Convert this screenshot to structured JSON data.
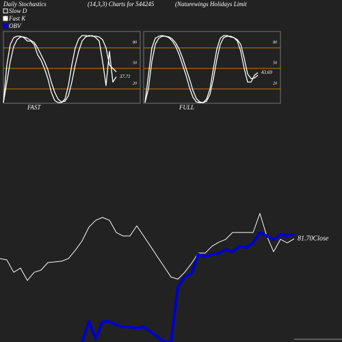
{
  "header": {
    "title": "Daily Stochastics",
    "params": "(14,3,3) Charts for 544245",
    "company": "(Naturewings Holidays Limit"
  },
  "chart_data": [
    {
      "type": "line",
      "title": "FAST",
      "ylim": [
        0,
        102
      ],
      "yticks": [
        20,
        50,
        80
      ],
      "grid": true,
      "grid_color": "#c87a00",
      "series": [
        {
          "name": "Slow D",
          "color": "#ffffff",
          "values": [
            0,
            30,
            60,
            82,
            92,
            96,
            96,
            94,
            91,
            88,
            80,
            70,
            60,
            48,
            30,
            15,
            5,
            1,
            2,
            10,
            30,
            55,
            75,
            90,
            96,
            98,
            97,
            97,
            96,
            92,
            80,
            55,
            50,
            45
          ]
        },
        {
          "name": "Fast K",
          "color": "#ffffff",
          "values": [
            0,
            55,
            85,
            95,
            97,
            97,
            95,
            90,
            90,
            85,
            70,
            62,
            50,
            35,
            15,
            3,
            0,
            0,
            5,
            25,
            55,
            80,
            93,
            98,
            98,
            97,
            98,
            95,
            90,
            60,
            25,
            75,
            30,
            37.71
          ],
          "value_labels": [
            null,
            null,
            null,
            null,
            null,
            null,
            null,
            null,
            null,
            null,
            null,
            null,
            null,
            null,
            null,
            null,
            null,
            null,
            null,
            null,
            null,
            null,
            null,
            null,
            null,
            null,
            null,
            null,
            null,
            null,
            null,
            null,
            null,
            "37.71"
          ]
        }
      ]
    },
    {
      "type": "line",
      "title": "FULL",
      "ylim": [
        0,
        102
      ],
      "yticks": [
        20,
        50,
        80
      ],
      "grid": true,
      "grid_color": "#c87a00",
      "series": [
        {
          "name": "Slow D",
          "color": "#ffffff",
          "values": [
            0,
            20,
            60,
            85,
            94,
            97,
            97,
            96,
            93,
            87,
            78,
            65,
            50,
            35,
            18,
            6,
            1,
            0,
            2,
            12,
            35,
            63,
            85,
            95,
            97,
            97,
            95,
            92,
            85,
            65,
            42,
            35,
            36,
            40
          ]
        },
        {
          "name": "Fast K",
          "color": "#ffffff",
          "values": [
            0,
            40,
            80,
            94,
            97,
            98,
            97,
            95,
            90,
            82,
            70,
            55,
            40,
            22,
            8,
            1,
            0,
            0,
            5,
            20,
            50,
            78,
            94,
            98,
            98,
            96,
            95,
            90,
            75,
            50,
            30,
            30,
            40,
            43.69
          ],
          "value_labels": [
            null,
            null,
            null,
            null,
            null,
            null,
            null,
            null,
            null,
            null,
            null,
            null,
            null,
            null,
            null,
            null,
            null,
            null,
            null,
            null,
            null,
            null,
            null,
            null,
            null,
            null,
            null,
            null,
            null,
            null,
            null,
            null,
            null,
            "43.69"
          ]
        }
      ]
    },
    {
      "type": "line",
      "ylim": [
        20,
        110
      ],
      "y2lim": [
        0,
        100
      ],
      "series": [
        {
          "color": "#ffffff",
          "values": [
            69.9,
            69.1,
            61.7,
            64.2,
            56.8,
            61.7,
            63.0,
            67.5,
            67.9,
            68.3,
            69.9,
            74.8,
            80.5,
            88.7,
            92.8,
            94.5,
            92.8,
            85.5,
            83.4,
            83.4,
            89.5,
            83.4,
            77.3,
            71.1,
            65.0,
            58.9,
            57.6,
            61.7,
            67.0,
            73.2,
            73.2,
            77.3,
            79.7,
            81.4,
            85.5,
            85.5,
            85.5,
            85.5,
            96.9,
            83.4,
            74.0,
            81.4,
            79.3,
            81.7
          ],
          "value_labels": [
            null,
            null,
            null,
            null,
            null,
            null,
            null,
            null,
            null,
            null,
            null,
            null,
            null,
            null,
            null,
            null,
            null,
            null,
            null,
            null,
            null,
            null,
            null,
            null,
            null,
            null,
            null,
            null,
            null,
            null,
            null,
            null,
            null,
            null,
            null,
            null,
            null,
            null,
            null,
            null,
            null,
            null,
            null,
            "81.70Close"
          ]
        },
        {
          "name": "OBV",
          "color": "#0000cc",
          "axis": "y2",
          "values": [
            null,
            null,
            null,
            null,
            null,
            null,
            null,
            null,
            null,
            null,
            null,
            null,
            0,
            13.6,
            2.3,
            13.6,
            13.6,
            11.4,
            10,
            10,
            9.1,
            10,
            6.8,
            3.6,
            0,
            0,
            36.4,
            43.2,
            45.5,
            58.2,
            56.8,
            58.2,
            59.1,
            61.4,
            60,
            63.6,
            62.7,
            65.9,
            72.7,
            70.5,
            68.2,
            71.4,
            70.5,
            71.8
          ]
        }
      ]
    }
  ]
}
